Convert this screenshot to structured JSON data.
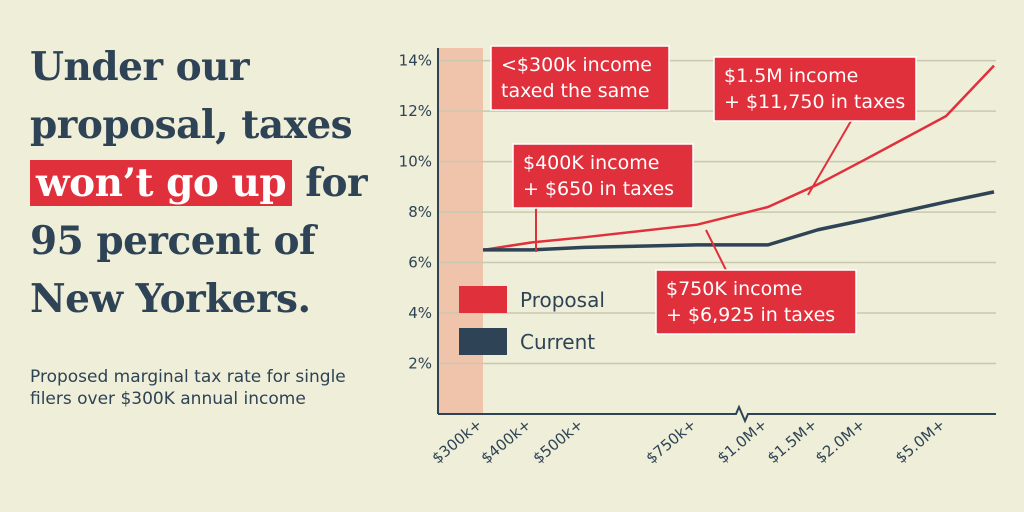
{
  "headline": {
    "part1": "Under our proposal, taxes",
    "highlight": "won’t go up",
    "part2": "for 95 percent of New Yorkers."
  },
  "subtitle": "Proposed marginal tax rate for single filers over $300K annual income",
  "colors": {
    "background": "#efeed8",
    "proposal": "#e0303c",
    "current": "#2e4355",
    "shaded_band": "#f0c4ab",
    "grid": "#c9c8b1"
  },
  "chart_data": {
    "type": "line",
    "x": [
      "$300k+",
      "$400k+",
      "$500k+",
      "$750k+",
      "$1.0M+",
      "$1.5M+",
      "$2.0M+",
      "$5.0M+"
    ],
    "yticks": [
      "2%",
      "4%",
      "6%",
      "8%",
      "10%",
      "12%",
      "14%"
    ],
    "ylim": [
      0,
      14.5
    ],
    "axis_break_after": "$750k+",
    "grid": true,
    "series": [
      {
        "name": "Proposal",
        "points": [
          {
            "x": "$300k+",
            "y": 6.5
          },
          {
            "x": "$400k+",
            "y": 6.8
          },
          {
            "x": "$500k+",
            "y": 7.0
          },
          {
            "x": "$750k+",
            "y": 7.5
          },
          {
            "x": "$1.0M+",
            "y": 8.2
          },
          {
            "x": "$1.5M+",
            "y": 9.1
          },
          {
            "x": "$2.0M+",
            "y": 10.1
          },
          {
            "x": "$5.0M+",
            "y": 11.8
          },
          {
            "x": "end",
            "y": 13.8
          }
        ]
      },
      {
        "name": "Current",
        "points": [
          {
            "x": "$300k+",
            "y": 6.5
          },
          {
            "x": "$400k+",
            "y": 6.5
          },
          {
            "x": "$500k+",
            "y": 6.6
          },
          {
            "x": "$750k+",
            "y": 6.7
          },
          {
            "x": "$1.0M+",
            "y": 6.7
          },
          {
            "x": "$1.5M+",
            "y": 7.3
          },
          {
            "x": "$2.0M+",
            "y": 7.7
          },
          {
            "x": "$5.0M+",
            "y": 8.4
          },
          {
            "x": "end",
            "y": 8.8
          }
        ]
      }
    ],
    "legend": {
      "placement": "center-left",
      "items": [
        {
          "label": "Proposal",
          "color": "#e0303c"
        },
        {
          "label": "Current",
          "color": "#2e4355"
        }
      ]
    },
    "annotations": [
      {
        "id": "a300",
        "lines": [
          "<$300k income",
          "taxed the same"
        ]
      },
      {
        "id": "a400",
        "lines": [
          "$400K income",
          "+ $650 in taxes"
        ]
      },
      {
        "id": "a15m",
        "lines": [
          "$1.5M income",
          "+ $11,750 in taxes"
        ]
      },
      {
        "id": "a750",
        "lines": [
          "$750K income",
          "+ $6,925 in taxes"
        ]
      }
    ]
  }
}
